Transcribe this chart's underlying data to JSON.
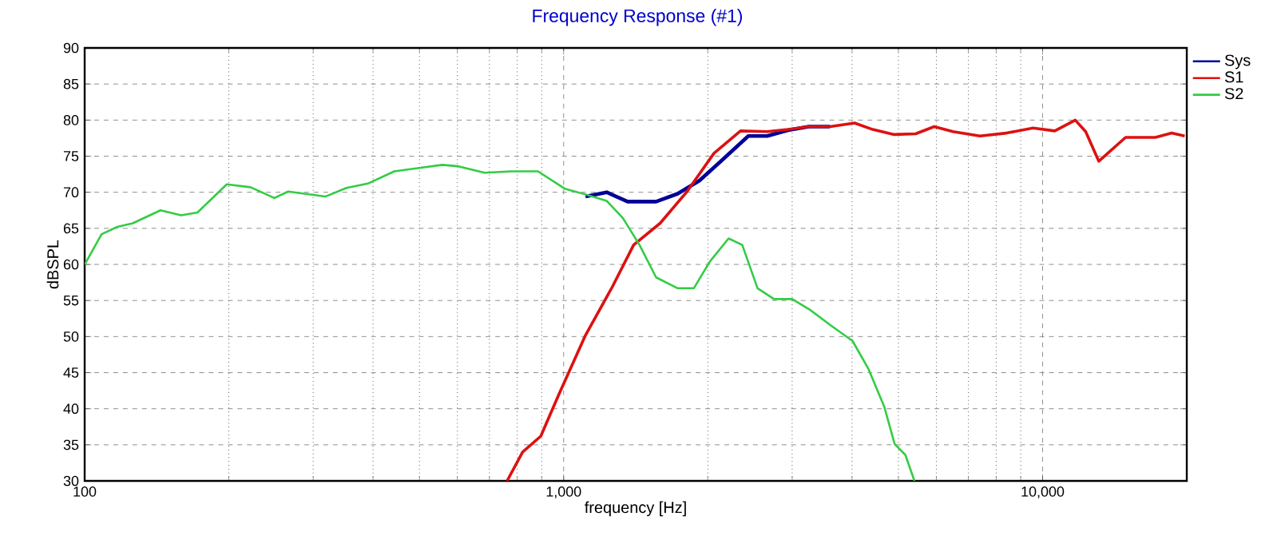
{
  "chart_data": {
    "type": "line",
    "title": "Frequency Response (#1)",
    "xlabel": "frequency [Hz]",
    "ylabel": "dBSPL",
    "log": "x",
    "xlim": [
      100,
      20000
    ],
    "ylim": [
      30,
      90
    ],
    "xticks": [
      100,
      {
        "value": 1000,
        "label": "1,000"
      },
      {
        "value": 10000,
        "label": "10,000"
      }
    ],
    "yticks": [
      30,
      35,
      40,
      45,
      50,
      55,
      60,
      65,
      70,
      75,
      80,
      85,
      90
    ],
    "grid": true,
    "legend": "top right",
    "series": [
      {
        "name": "Sys",
        "color": "#000099",
        "x": [
          1111,
          1230,
          1360,
          1560,
          1730,
          1920,
          2130,
          2430,
          2660,
          2940,
          3250,
          3600
        ],
        "values": [
          69.4,
          70.0,
          68.7,
          68.7,
          69.8,
          71.6,
          74.3,
          77.8,
          77.8,
          78.6,
          79.1,
          79.1
        ]
      },
      {
        "name": "S1",
        "color": "#dd1111",
        "x": [
          762,
          821,
          896,
          979,
          1111,
          1264,
          1400,
          1590,
          1810,
          2060,
          2340,
          2660,
          2940,
          3250,
          3600,
          4050,
          4420,
          4900,
          5430,
          5940,
          6500,
          7400,
          8400,
          9550,
          10600,
          11700,
          12300,
          13100,
          14900,
          17200,
          18600,
          19800
        ],
        "values": [
          30,
          34.0,
          36.2,
          42.1,
          50.2,
          56.9,
          62.7,
          65.7,
          70.1,
          75.4,
          78.5,
          78.4,
          78.7,
          79.1,
          79.1,
          79.6,
          78.7,
          78.0,
          78.1,
          79.1,
          78.4,
          77.8,
          78.2,
          78.9,
          78.5,
          80.0,
          78.4,
          74.3,
          77.6,
          77.6,
          78.2,
          77.8
        ]
      },
      {
        "name": "S2",
        "color": "#33cc44",
        "x": [
          100,
          108.5,
          117,
          126,
          144,
          159,
          172,
          181,
          198,
          222,
          249,
          266,
          318,
          352,
          390,
          443,
          503,
          558,
          603,
          684,
          777,
          884,
          1005,
          1111,
          1230,
          1330,
          1440,
          1560,
          1730,
          1870,
          2020,
          2210,
          2360,
          2540,
          2750,
          3000,
          3270,
          3620,
          4010,
          4330,
          4670,
          4910,
          5170,
          5400
        ],
        "values": [
          60,
          64.2,
          65.2,
          65.7,
          67.5,
          66.8,
          67.2,
          68.6,
          71.1,
          70.7,
          69.2,
          70.1,
          69.4,
          70.6,
          71.2,
          72.9,
          73.4,
          73.8,
          73.6,
          72.7,
          72.9,
          72.9,
          70.5,
          69.7,
          68.8,
          66.4,
          62.7,
          58.2,
          56.7,
          56.7,
          60.4,
          63.6,
          62.7,
          56.7,
          55.2,
          55.2,
          53.7,
          51.5,
          49.4,
          45.5,
          40.3,
          35.1,
          33.6,
          30
        ]
      }
    ]
  }
}
